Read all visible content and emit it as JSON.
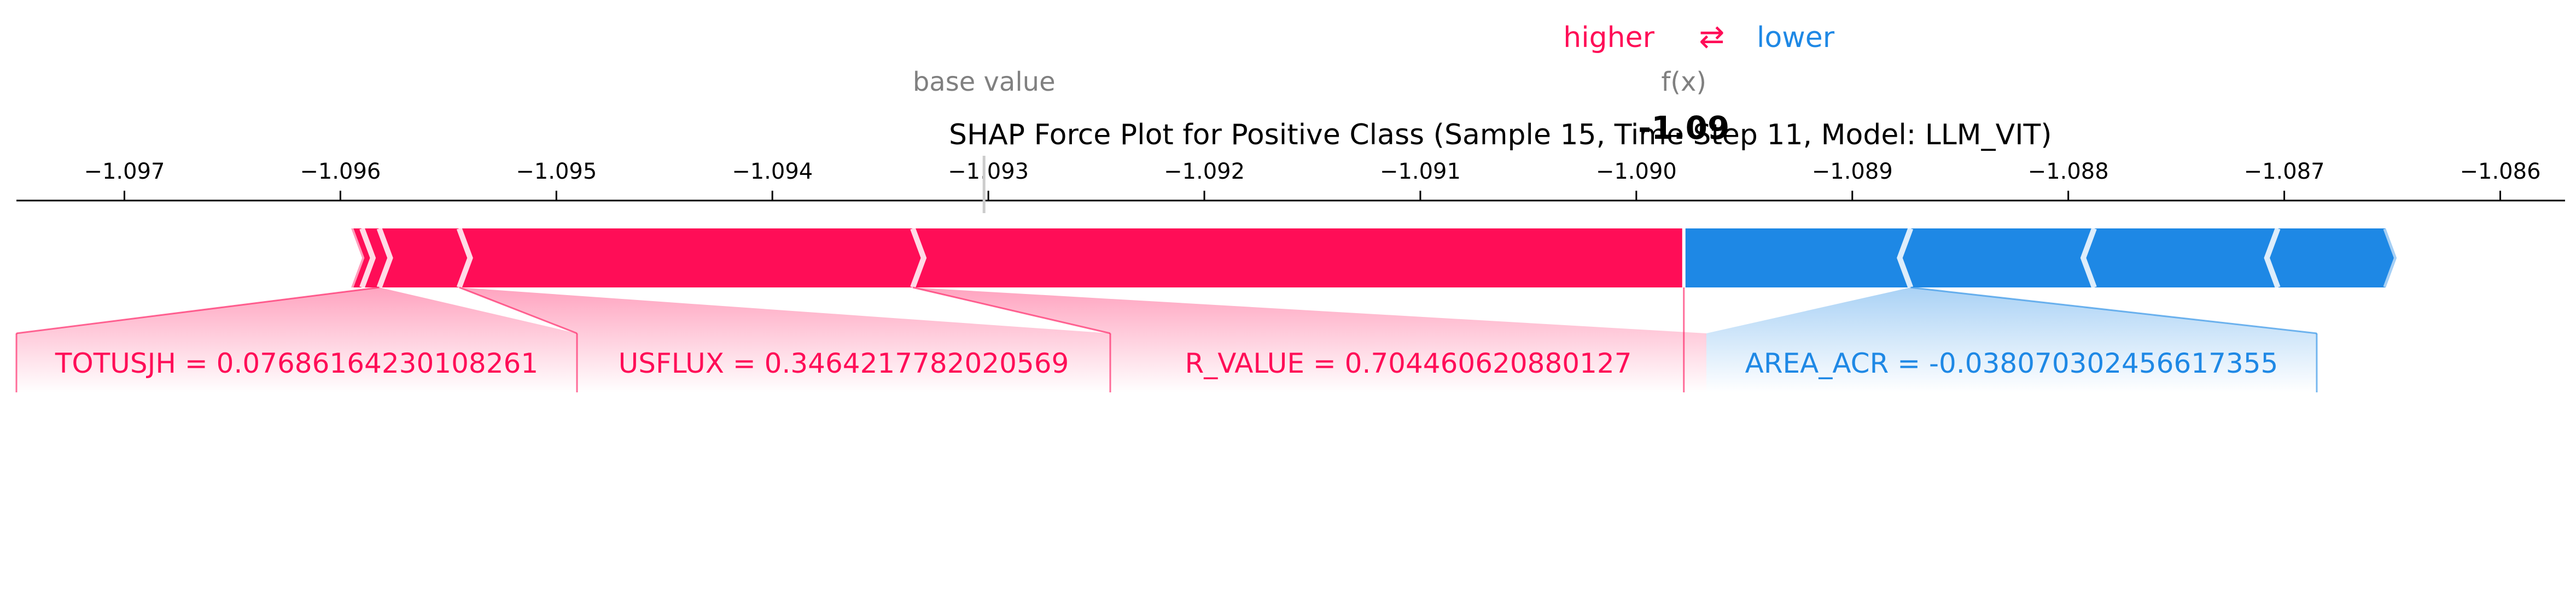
{
  "chart_data": {
    "type": "force",
    "title": "SHAP Force Plot for Positive Class (Sample 15, Time Step 11, Model: LLM_VIT)",
    "legend": {
      "higher": "higher",
      "arrow": "⇄",
      "lower": "lower"
    },
    "base_value_label": "base value",
    "fx_label": "f(x)",
    "fx_value_text": "-1.09",
    "base_value": -1.09302,
    "output_value": -1.08978,
    "xlim": [
      -1.0975,
      -1.0857
    ],
    "ticks": [
      -1.097,
      -1.096,
      -1.095,
      -1.094,
      -1.093,
      -1.092,
      -1.091,
      -1.09,
      -1.089,
      -1.088,
      -1.087,
      -1.086
    ],
    "tick_labels": [
      "−1.097",
      "−1.096",
      "−1.095",
      "−1.094",
      "−1.093",
      "−1.092",
      "−1.091",
      "−1.090",
      "−1.089",
      "−1.088",
      "−1.087",
      "−1.086"
    ],
    "positive_segments": [
      {
        "start": -1.09595,
        "end": -1.0959
      },
      {
        "start": -1.0959,
        "end": -1.09582
      },
      {
        "start": -1.09582,
        "end": -1.09545,
        "label": "TOTUSJH = 0.07686164230108261"
      },
      {
        "start": -1.09545,
        "end": -1.09335,
        "label": "USFLUX = 0.3464217782020569"
      },
      {
        "start": -1.09335,
        "end": -1.08978,
        "label": "R_VALUE = 0.704460620880127"
      }
    ],
    "negative_segments": [
      {
        "start": -1.08978,
        "end": -1.08873,
        "label": "AREA_ACR = -0.038070302456617355"
      },
      {
        "start": -1.08873,
        "end": -1.08788
      },
      {
        "start": -1.08788,
        "end": -1.08703
      },
      {
        "start": -1.08703,
        "end": -1.08653
      }
    ],
    "colors": {
      "positive": "#ff0d57",
      "negative": "#1e88e5",
      "axis": "#000000",
      "muted": "#808080"
    }
  }
}
